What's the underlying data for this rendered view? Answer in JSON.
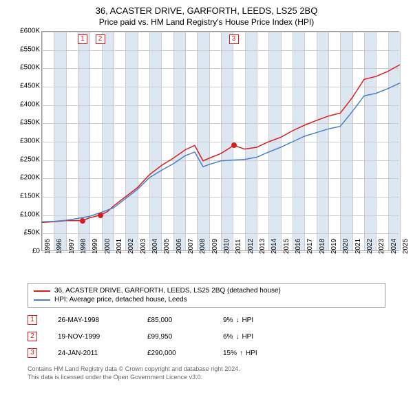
{
  "title": "36, ACASTER DRIVE, GARFORTH, LEEDS, LS25 2BQ",
  "subtitle": "Price paid vs. HM Land Registry's House Price Index (HPI)",
  "chart": {
    "type": "line",
    "xlim": [
      1995,
      2025
    ],
    "ylim": [
      0,
      600000
    ],
    "ytick_step": 50000,
    "yticks": [
      "£0",
      "£50K",
      "£100K",
      "£150K",
      "£200K",
      "£250K",
      "£300K",
      "£350K",
      "£400K",
      "£450K",
      "£500K",
      "£550K",
      "£600K"
    ],
    "xticks": [
      "1995",
      "1996",
      "1997",
      "1998",
      "1999",
      "2000",
      "2001",
      "2002",
      "2003",
      "2004",
      "2005",
      "2006",
      "2007",
      "2008",
      "2009",
      "2010",
      "2011",
      "2012",
      "2013",
      "2014",
      "2015",
      "2016",
      "2017",
      "2018",
      "2019",
      "2020",
      "2021",
      "2022",
      "2023",
      "2024",
      "2025"
    ],
    "grid_color": "#cccccc",
    "band_color": "#dde7f2",
    "background_color": "#ffffff",
    "series": [
      {
        "name": "property",
        "color": "#d91c1c",
        "width": 1.5,
        "points": [
          [
            1995,
            80000
          ],
          [
            1996,
            82000
          ],
          [
            1997,
            85000
          ],
          [
            1998.4,
            85000
          ],
          [
            1999,
            93000
          ],
          [
            1999.88,
            99950
          ],
          [
            2000.5,
            110000
          ],
          [
            2001,
            125000
          ],
          [
            2002,
            150000
          ],
          [
            2003,
            175000
          ],
          [
            2004,
            210000
          ],
          [
            2005,
            235000
          ],
          [
            2006,
            255000
          ],
          [
            2007,
            278000
          ],
          [
            2007.8,
            290000
          ],
          [
            2008.5,
            248000
          ],
          [
            2009,
            255000
          ],
          [
            2010,
            268000
          ],
          [
            2011.07,
            290000
          ],
          [
            2012,
            280000
          ],
          [
            2013,
            285000
          ],
          [
            2014,
            300000
          ],
          [
            2015,
            312000
          ],
          [
            2016,
            330000
          ],
          [
            2017,
            345000
          ],
          [
            2018,
            358000
          ],
          [
            2019,
            370000
          ],
          [
            2020,
            378000
          ],
          [
            2021,
            420000
          ],
          [
            2022,
            470000
          ],
          [
            2023,
            478000
          ],
          [
            2024,
            492000
          ],
          [
            2025,
            510000
          ]
        ]
      },
      {
        "name": "hpi",
        "color": "#4a7fc9",
        "width": 1.5,
        "points": [
          [
            1995,
            82000
          ],
          [
            1996,
            83000
          ],
          [
            1997,
            86000
          ],
          [
            1998,
            91000
          ],
          [
            1999,
            97000
          ],
          [
            2000,
            108000
          ],
          [
            2001,
            120000
          ],
          [
            2002,
            145000
          ],
          [
            2003,
            170000
          ],
          [
            2004,
            202000
          ],
          [
            2005,
            222000
          ],
          [
            2006,
            240000
          ],
          [
            2007,
            262000
          ],
          [
            2007.8,
            272000
          ],
          [
            2008.5,
            232000
          ],
          [
            2009,
            238000
          ],
          [
            2010,
            248000
          ],
          [
            2011,
            250000
          ],
          [
            2012,
            252000
          ],
          [
            2013,
            258000
          ],
          [
            2014,
            272000
          ],
          [
            2015,
            285000
          ],
          [
            2016,
            300000
          ],
          [
            2017,
            315000
          ],
          [
            2018,
            325000
          ],
          [
            2019,
            335000
          ],
          [
            2020,
            342000
          ],
          [
            2021,
            382000
          ],
          [
            2022,
            425000
          ],
          [
            2023,
            432000
          ],
          [
            2024,
            445000
          ],
          [
            2025,
            460000
          ]
        ]
      }
    ],
    "markers": [
      {
        "num": "1",
        "x": 1998.4,
        "y": 85000,
        "color": "#d91c1c"
      },
      {
        "num": "2",
        "x": 1999.88,
        "y": 99950,
        "color": "#d91c1c"
      },
      {
        "num": "3",
        "x": 2011.07,
        "y": 290000,
        "color": "#d91c1c"
      }
    ]
  },
  "legend": {
    "items": [
      {
        "color": "#d91c1c",
        "label": "36, ACASTER DRIVE, GARFORTH, LEEDS, LS25 2BQ (detached house)"
      },
      {
        "color": "#4a7fc9",
        "label": "HPI: Average price, detached house, Leeds"
      }
    ]
  },
  "sales": [
    {
      "num": "1",
      "color": "#d91c1c",
      "date": "26-MAY-1998",
      "price": "£85,000",
      "pct": "9%",
      "dir": "down",
      "hpi_label": "HPI"
    },
    {
      "num": "2",
      "color": "#d91c1c",
      "date": "19-NOV-1999",
      "price": "£99,950",
      "pct": "6%",
      "dir": "down",
      "hpi_label": "HPI"
    },
    {
      "num": "3",
      "color": "#d91c1c",
      "date": "24-JAN-2011",
      "price": "£290,000",
      "pct": "15%",
      "dir": "up",
      "hpi_label": "HPI"
    }
  ],
  "footer_line1": "Contains HM Land Registry data © Crown copyright and database right 2024.",
  "footer_line2": "This data is licensed under the Open Government Licence v3.0."
}
